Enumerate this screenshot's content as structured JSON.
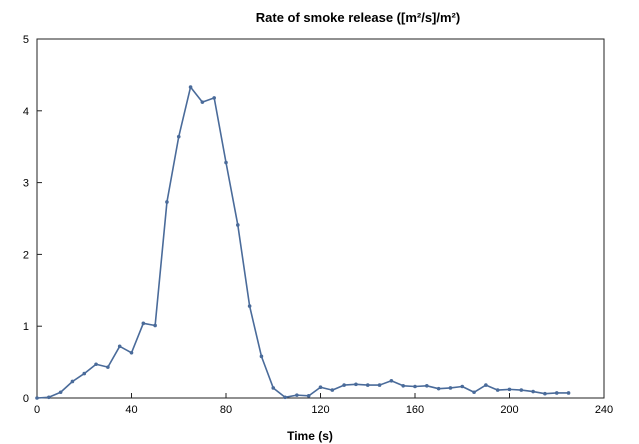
{
  "chart_data": {
    "type": "line",
    "title": "Rate of smoke release ([m²/s]/m²)",
    "xlabel": "Time (s)",
    "ylabel": "",
    "xlim": [
      0,
      240
    ],
    "ylim": [
      0,
      5
    ],
    "xticks": [
      "0",
      "40",
      "80",
      "120",
      "160",
      "200",
      "240"
    ],
    "yticks": [
      "0",
      "1",
      "2",
      "3",
      "4",
      "5"
    ],
    "grid": false,
    "legend": "none",
    "series": [
      {
        "color": "#4a6b9a",
        "x": [
          0,
          5,
          10,
          15,
          20,
          25,
          30,
          35,
          40,
          45,
          50,
          55,
          60,
          65,
          70,
          75,
          80,
          85,
          90,
          95,
          100,
          105,
          110,
          115,
          120,
          125,
          130,
          135,
          140,
          145,
          150,
          155,
          160,
          165,
          170,
          175,
          180,
          185,
          190,
          195,
          200,
          205,
          210,
          215,
          220,
          225
        ],
        "y": [
          0.0,
          0.01,
          0.08,
          0.23,
          0.34,
          0.47,
          0.43,
          0.72,
          0.63,
          1.04,
          1.01,
          2.73,
          3.64,
          4.33,
          4.12,
          4.18,
          3.28,
          2.41,
          1.28,
          0.58,
          0.14,
          0.01,
          0.04,
          0.03,
          0.15,
          0.11,
          0.18,
          0.19,
          0.18,
          0.18,
          0.24,
          0.17,
          0.16,
          0.17,
          0.13,
          0.14,
          0.16,
          0.08,
          0.18,
          0.11,
          0.12,
          0.11,
          0.09,
          0.06,
          0.07,
          0.07
        ]
      }
    ]
  }
}
